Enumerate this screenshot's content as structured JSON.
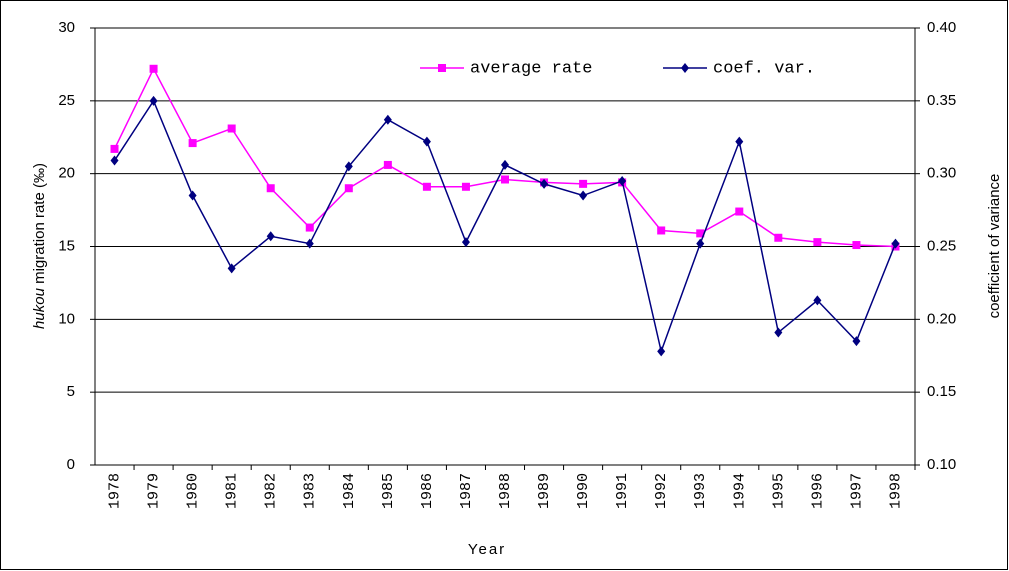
{
  "chart_data": {
    "type": "line",
    "categories": [
      "1978",
      "1979",
      "1980",
      "1981",
      "1982",
      "1983",
      "1984",
      "1985",
      "1986",
      "1987",
      "1988",
      "1989",
      "1990",
      "1991",
      "1992",
      "1993",
      "1994",
      "1995",
      "1996",
      "1997",
      "1998"
    ],
    "series": [
      {
        "name": "average rate",
        "color": "#ff00ff",
        "marker": "square",
        "values": [
          21.7,
          27.2,
          22.1,
          23.1,
          19.0,
          16.3,
          19.0,
          20.6,
          19.1,
          19.1,
          19.6,
          19.4,
          19.3,
          19.4,
          16.1,
          15.9,
          17.4,
          15.6,
          15.3,
          15.1,
          15.0
        ]
      },
      {
        "name": "coef. var.",
        "color": "#000080",
        "marker": "diamond",
        "axis": "y2",
        "values": [
          0.309,
          0.35,
          0.285,
          0.235,
          0.257,
          0.252,
          0.305,
          0.337,
          0.322,
          0.253,
          0.306,
          0.293,
          0.285,
          0.295,
          0.178,
          0.252,
          0.322,
          0.191,
          0.213,
          0.185,
          0.252
        ]
      }
    ],
    "xlabel": "Year",
    "ylabel": [
      "hukou",
      "migration rate (‰)"
    ],
    "y2label": "coefficient of variance",
    "ylim": [
      0,
      30
    ],
    "yticks": [
      0,
      5,
      10,
      15,
      20,
      25,
      30
    ],
    "y2lim": [
      0.1,
      0.4
    ],
    "y2ticks": [
      {
        "value": 0.1,
        "label": "0.10"
      },
      {
        "value": 0.15,
        "label": "0.15"
      },
      {
        "value": 0.2,
        "label": "0.20"
      },
      {
        "value": 0.25,
        "label": "0.25"
      },
      {
        "value": 0.3,
        "label": "0.30"
      },
      {
        "value": 0.35,
        "label": "0.35"
      },
      {
        "value": 0.4,
        "label": "0.40"
      }
    ],
    "grid": true,
    "legend": "top-right"
  }
}
